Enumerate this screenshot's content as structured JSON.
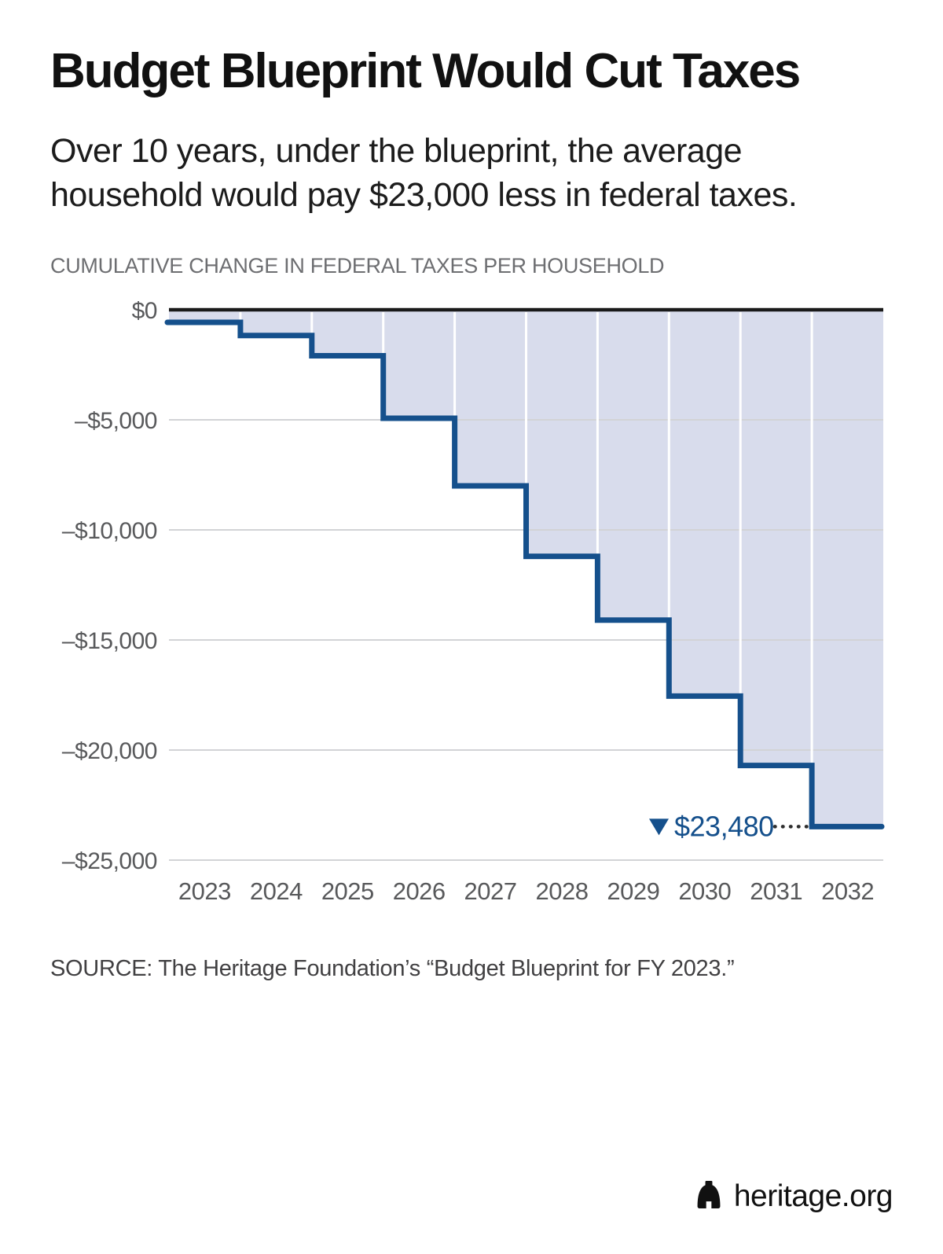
{
  "header": {
    "title": "Budget Blueprint Would Cut Taxes",
    "subtitle": "Over 10 years, under the blueprint, the average household would pay $23,000 less in federal taxes."
  },
  "chart_data": {
    "type": "area",
    "step": true,
    "title": "CUMULATIVE CHANGE IN FEDERAL TAXES PER HOUSEHOLD",
    "xlabel": "",
    "ylabel": "Cumulative change in federal taxes per household ($)",
    "categories": [
      2023,
      2024,
      2025,
      2026,
      2027,
      2028,
      2029,
      2030,
      2031,
      2032
    ],
    "values": [
      -570,
      -1170,
      -2090,
      -4930,
      -8000,
      -11200,
      -14100,
      -17550,
      -20700,
      -23480
    ],
    "ylim": [
      -25000,
      0
    ],
    "grid": true,
    "legend": "none",
    "y_ticks": [
      {
        "label": "$0",
        "value": 0
      },
      {
        "label": "–$5,000",
        "value": -5000
      },
      {
        "label": "–$10,000",
        "value": -10000
      },
      {
        "label": "–$15,000",
        "value": -15000
      },
      {
        "label": "–$20,000",
        "value": -20000
      },
      {
        "label": "–$25,000",
        "value": -25000
      }
    ],
    "annotation": {
      "marker": "▼",
      "label": "$23,480",
      "value": -23480,
      "year": 2032
    },
    "colors": {
      "line": "#15508c",
      "fill": "#d8dcec",
      "grid": "#d2d3d6",
      "zero_line": "#1a1a1a",
      "axis_text": "#58595b",
      "separator": "#ffffff",
      "leader_dots": "#2e2e2e"
    }
  },
  "footer": {
    "source": "SOURCE: The Heritage Foundation’s “Budget Blueprint for FY 2023.”",
    "brand": "heritage.org"
  }
}
